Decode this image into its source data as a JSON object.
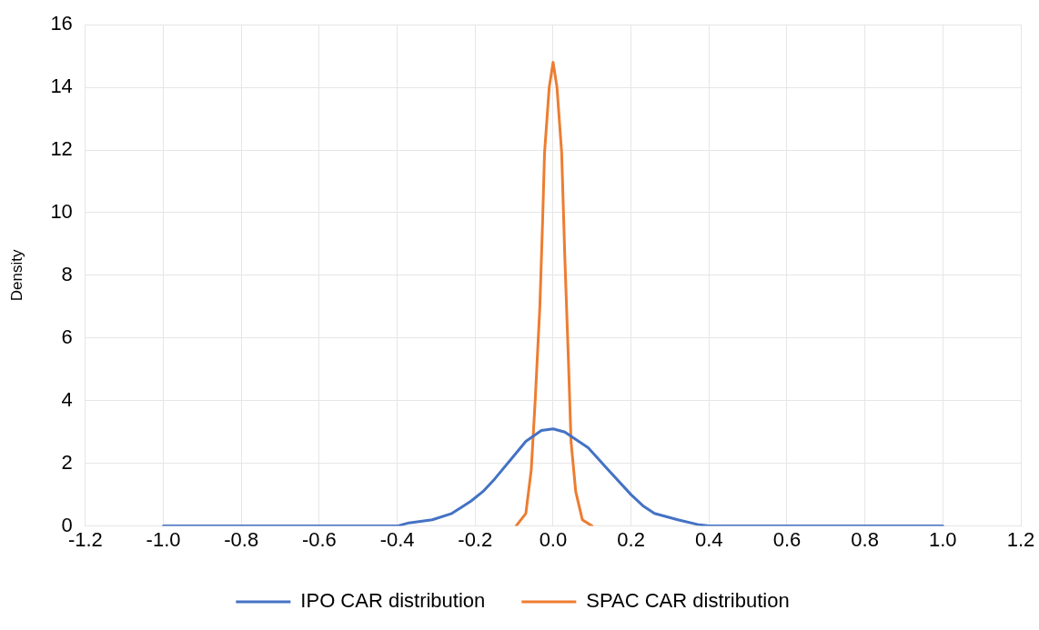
{
  "chart_data": {
    "type": "line",
    "ylabel": "Density",
    "xlim": [
      -1.2,
      1.2
    ],
    "xticks": [
      {
        "value": -1.2,
        "label": "-1.2"
      },
      {
        "value": -1,
        "label": "-1.0"
      },
      {
        "value": -0.8,
        "label": "-0.8"
      },
      {
        "value": -0.6,
        "label": "-0.6"
      },
      {
        "value": -0.4,
        "label": "-0.4"
      },
      {
        "value": -0.2,
        "label": "-0.2"
      },
      {
        "value": 0,
        "label": "0.0"
      },
      {
        "value": 0.2,
        "label": "0.2"
      },
      {
        "value": 0.4,
        "label": "0.4"
      },
      {
        "value": 0.6,
        "label": "0.6"
      },
      {
        "value": 0.8,
        "label": "0.8"
      },
      {
        "value": 1,
        "label": "1.0"
      },
      {
        "value": 1.2,
        "label": "1.2"
      }
    ],
    "ylim": [
      0,
      16
    ],
    "yticks": [
      0,
      2,
      4,
      6,
      8,
      10,
      12,
      14,
      16
    ],
    "grid": true,
    "legend": "bottom",
    "marker": "none",
    "line_style": "solid",
    "series": [
      {
        "name": "IPO CAR distribution",
        "color": "#4472c4",
        "x": [
          -1.0,
          -0.8,
          -0.6,
          -0.4,
          -0.37,
          -0.31,
          -0.26,
          -0.21,
          -0.18,
          -0.15,
          -0.11,
          -0.07,
          -0.03,
          0,
          0.03,
          0.09,
          0.13,
          0.2,
          0.23,
          0.26,
          0.32,
          0.37,
          0.4,
          0.6,
          0.8,
          1.0
        ],
        "values": [
          0,
          0,
          0,
          0,
          0.1,
          0.2,
          0.4,
          0.8,
          1.1,
          1.5,
          2.1,
          2.7,
          3.05,
          3.1,
          3.0,
          2.5,
          1.95,
          1.0,
          0.65,
          0.4,
          0.2,
          0.05,
          0,
          0,
          0,
          0
        ]
      },
      {
        "name": "SPAC CAR distribution",
        "color": "#ed7d31",
        "x": [
          -0.095,
          -0.07,
          -0.056,
          -0.046,
          -0.034,
          -0.027,
          -0.022,
          -0.01,
          0,
          0.01,
          0.022,
          0.03,
          0.039,
          0.046,
          0.058,
          0.075,
          0.1
        ],
        "values": [
          0,
          0.4,
          1.8,
          4.0,
          7.0,
          9.7,
          11.9,
          14.0,
          14.8,
          14.0,
          11.9,
          8.6,
          5.4,
          2.7,
          1.1,
          0.2,
          0
        ]
      }
    ]
  }
}
